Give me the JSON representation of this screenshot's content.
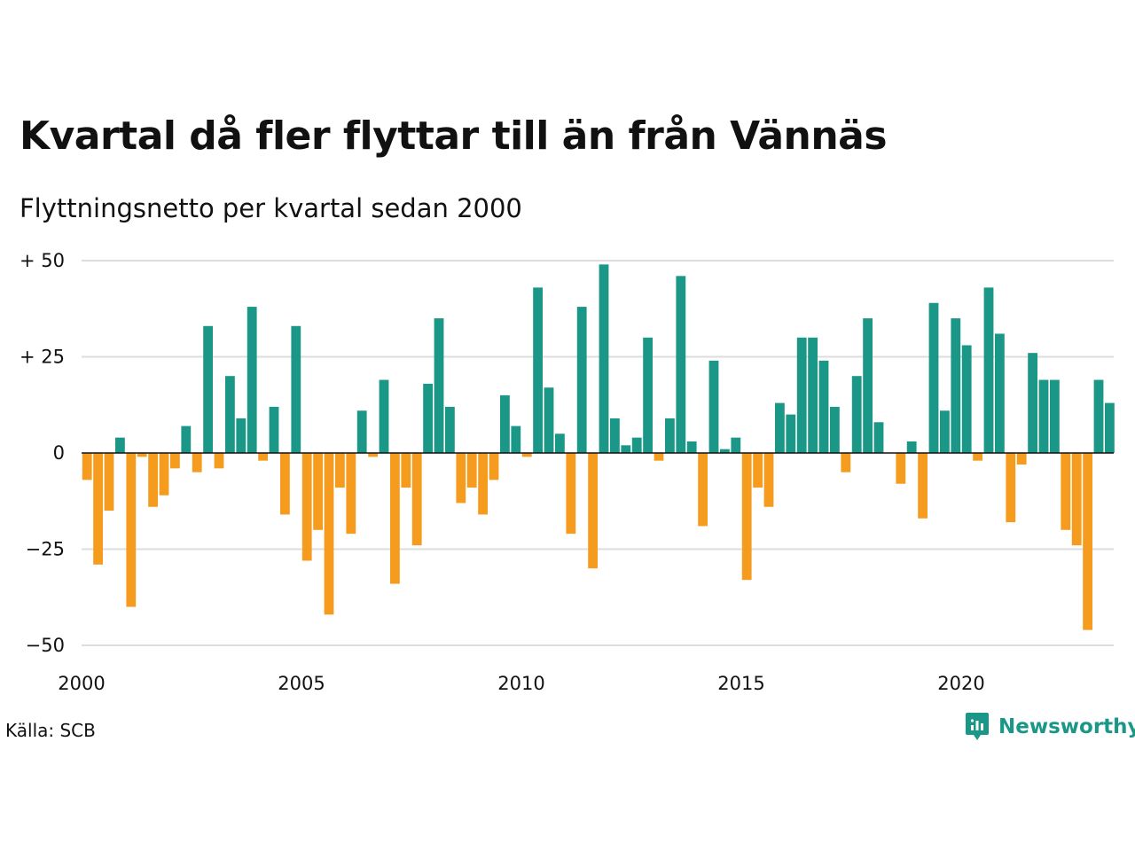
{
  "title": "Kvartal då fler flyttar till än från Vännäs",
  "subtitle": "Flyttningsnetto per kvartal sedan 2000",
  "source": "Källa: SCB",
  "brand": "Newsworthy",
  "colors": {
    "positive": "#1a9787",
    "negative": "#f59c1e",
    "grid": "#dddddd",
    "axis": "#111111"
  },
  "chart_data": {
    "type": "bar",
    "x_start": "2000 Q1",
    "x_ticks": [
      "2000",
      "2005",
      "2010",
      "2015",
      "2020"
    ],
    "y_ticks": [
      "+ 50",
      "+ 25",
      "0",
      "−25",
      "−50"
    ],
    "ylim": [
      -50,
      50
    ],
    "grid": true,
    "values": [
      -7,
      -29,
      -15,
      4,
      -40,
      -1,
      -14,
      -11,
      -4,
      7,
      -5,
      33,
      -4,
      20,
      9,
      38,
      -2,
      12,
      -16,
      33,
      -28,
      -20,
      -42,
      -9,
      -21,
      11,
      -1,
      19,
      -34,
      -9,
      -24,
      18,
      35,
      12,
      -13,
      -9,
      -16,
      -7,
      15,
      7,
      -1,
      43,
      17,
      5,
      -21,
      38,
      -30,
      49,
      9,
      2,
      4,
      30,
      -2,
      9,
      46,
      3,
      -19,
      24,
      1,
      4,
      -33,
      -9,
      -14,
      13,
      10,
      30,
      30,
      24,
      12,
      -5,
      20,
      35,
      8,
      0,
      -8,
      3,
      -17,
      39,
      11,
      35,
      28,
      -2,
      43,
      31,
      -18,
      -3,
      26,
      19,
      19,
      -20,
      -24,
      -46,
      19,
      13
    ]
  }
}
